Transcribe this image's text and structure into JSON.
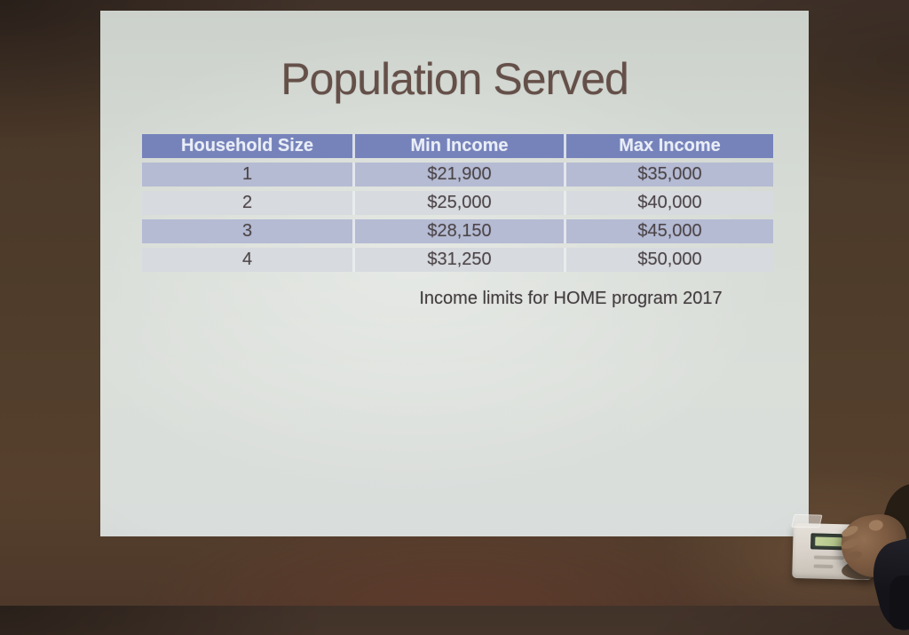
{
  "slide": {
    "title": "Population Served",
    "caption": "Income limits for HOME program 2017",
    "table": {
      "headers": [
        "Household Size",
        "Min Income",
        "Max Income"
      ],
      "rows": [
        [
          "1",
          "$21,900",
          "$35,000"
        ],
        [
          "2",
          "$25,000",
          "$40,000"
        ],
        [
          "3",
          "$28,150",
          "$45,000"
        ],
        [
          "4",
          "$31,250",
          "$50,000"
        ]
      ]
    }
  },
  "colors": {
    "table_header_bg": "#7683bb",
    "table_band_row_bg": "#b5bbd3",
    "table_alt_row_bg": "#d7dade",
    "table_header_text": "#e9edf6",
    "table_body_text": "#4c4549",
    "slide_title_text": "#645049",
    "slide_background": "#d6dbd5",
    "wall_brown": "#503d2b",
    "thermostat_lcd_green": "#c4d49c"
  }
}
